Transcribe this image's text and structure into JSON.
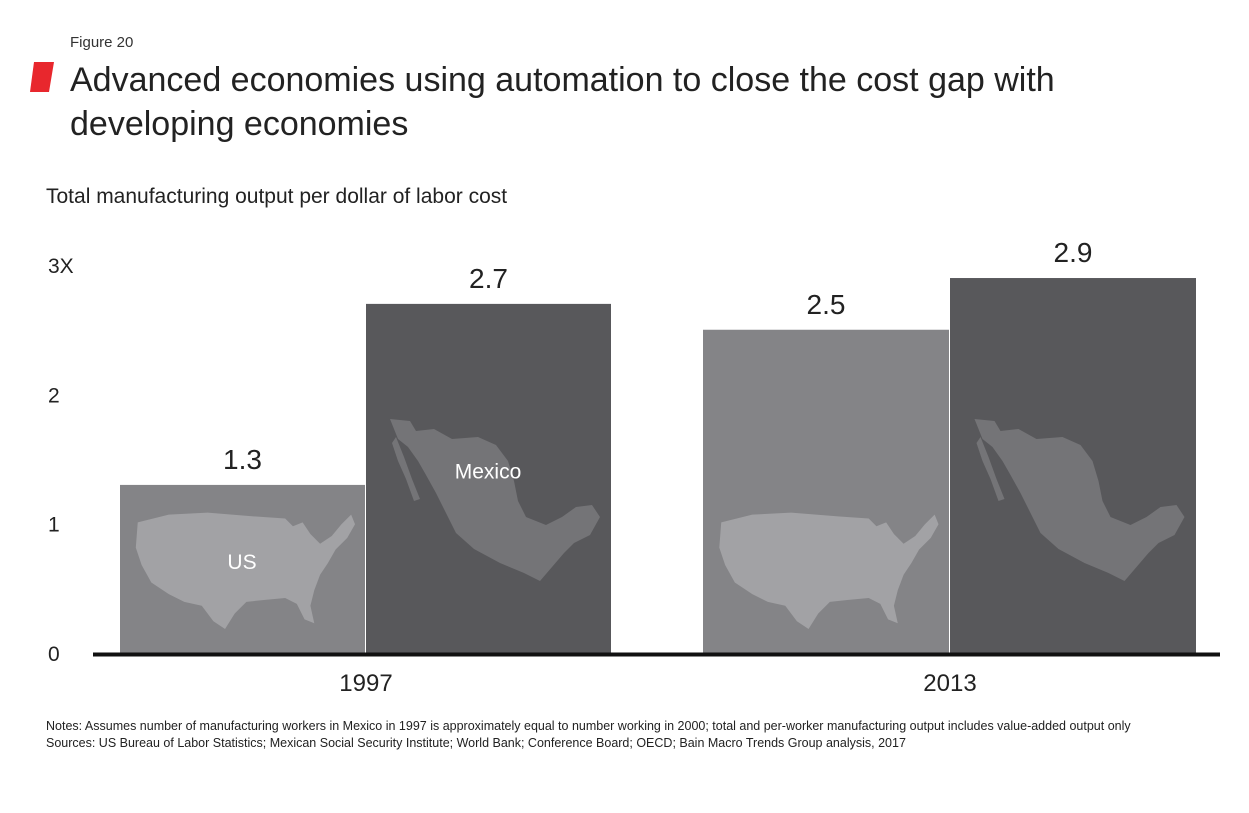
{
  "figure_label": "Figure 20",
  "title": "Advanced economies using automation to close the cost gap with developing economies",
  "subtitle": "Total manufacturing output per dollar of labor cost",
  "notes": "Notes: Assumes number of manufacturing workers in Mexico in 1997 is approximately equal to number working in 2000; total and per-worker manufacturing output includes value-added output only",
  "sources": "Sources: US Bureau of Labor Statistics; Mexican Social Security Institute; World Bank; Conference Board; OECD; Bain Macro Trends Group analysis, 2017",
  "colors": {
    "accent": "#e8272d",
    "us_bar": "#848487",
    "mexico_bar": "#58585b",
    "map_us": "#a2a2a5",
    "map_mexico": "#747477",
    "axis": "#111111"
  },
  "chart_data": {
    "type": "bar",
    "categories": [
      "1997",
      "2013"
    ],
    "series": [
      {
        "name": "US",
        "values": [
          1.3,
          2.5
        ]
      },
      {
        "name": "Mexico",
        "values": [
          2.7,
          2.9
        ]
      }
    ],
    "data_labels": [
      [
        "1.3",
        "2.5"
      ],
      [
        "2.7",
        "2.9"
      ]
    ],
    "yticks": [
      "0",
      "1",
      "2",
      "3X"
    ],
    "ylim": [
      0,
      3
    ],
    "grid": false,
    "legend": "none"
  }
}
